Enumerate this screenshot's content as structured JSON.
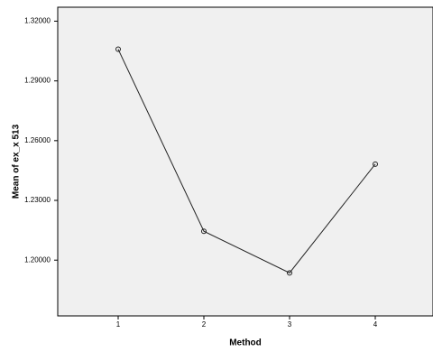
{
  "chart_data": {
    "type": "line",
    "x_label": "Method",
    "y_label": "Mean of ex_x 513",
    "categories": [
      "1",
      "2",
      "3",
      "4"
    ],
    "values": [
      1.3059,
      1.2145,
      1.1936,
      1.2482
    ],
    "color": "#222222",
    "ylim": [
      1.172,
      1.327
    ],
    "yticks": [
      {
        "value": 1.2,
        "label": "1.20000"
      },
      {
        "value": 1.23,
        "label": "1.23000"
      },
      {
        "value": 1.26,
        "label": "1.26000"
      },
      {
        "value": 1.29,
        "label": "1.29000"
      },
      {
        "value": 1.32,
        "label": "1.32000"
      }
    ]
  }
}
